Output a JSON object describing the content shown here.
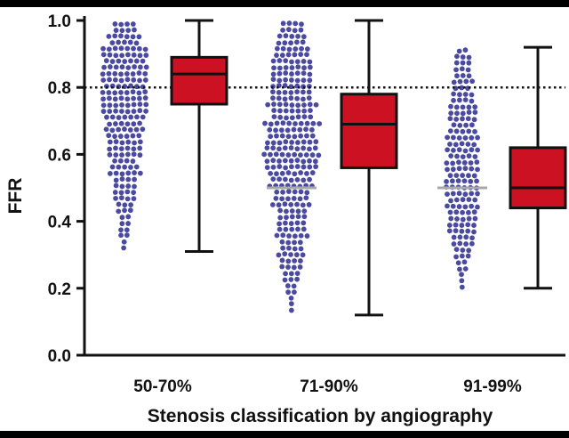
{
  "chart_data": {
    "type": "box",
    "title": "",
    "xlabel": "Stenosis classification by angiography",
    "ylabel": "FFR",
    "ylim": [
      0.0,
      1.0
    ],
    "yticks": [
      "0.0",
      "0.2",
      "0.4",
      "0.6",
      "0.8",
      "1.0"
    ],
    "categories": [
      "50-70%",
      "71-90%",
      "91-99%"
    ],
    "reference_line": {
      "y": 0.8,
      "style": "dotted"
    },
    "boxes": [
      {
        "category": "50-70%",
        "min": 0.31,
        "q1": 0.75,
        "median": 0.84,
        "q3": 0.89,
        "max": 1.0
      },
      {
        "category": "71-90%",
        "min": 0.12,
        "q1": 0.56,
        "median": 0.69,
        "q3": 0.78,
        "max": 1.0
      },
      {
        "category": "91-99%",
        "min": 0.2,
        "q1": 0.44,
        "median": 0.5,
        "q3": 0.62,
        "max": 0.92
      }
    ],
    "scatter_groups": [
      {
        "category": "50-70%",
        "n": 420,
        "min": 0.31,
        "max": 0.99,
        "marker_line": null
      },
      {
        "category": "71-90%",
        "n": 520,
        "min": 0.12,
        "max": 0.99,
        "marker_line": 0.5
      },
      {
        "category": "91-99%",
        "n": 190,
        "min": 0.2,
        "max": 0.91,
        "marker_line": 0.5
      }
    ],
    "colors": {
      "box_fill": "#cc1122",
      "points": "#4a4aa0",
      "marker_line": "#a9a9a9",
      "axis": "#111111"
    }
  }
}
